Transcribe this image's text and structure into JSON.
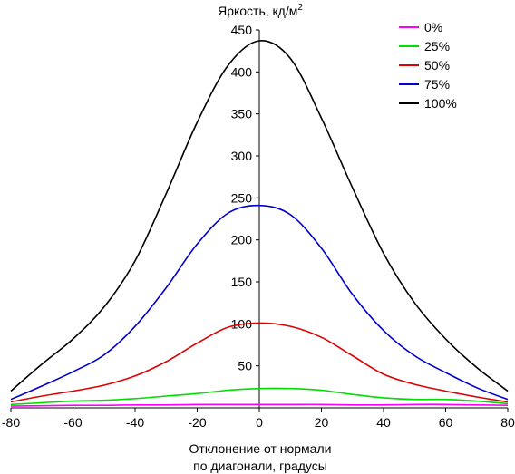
{
  "chart_data": {
    "type": "line",
    "title": "Яркость, кд/м",
    "title_sup": "2",
    "xlabel_line1": "Отклонение от нормали",
    "xlabel_line2": "по диагонали, градусы",
    "xlim": [
      -80,
      80
    ],
    "ylim": [
      0,
      450
    ],
    "xticks": [
      -80,
      -60,
      -40,
      -20,
      0,
      20,
      40,
      60,
      80
    ],
    "yticks": [
      50,
      100,
      150,
      200,
      250,
      300,
      350,
      400,
      450
    ],
    "grid": false,
    "legend_position": "top-right",
    "x": [
      -80,
      -70,
      -60,
      -50,
      -40,
      -30,
      -20,
      -10,
      0,
      10,
      20,
      30,
      40,
      50,
      60,
      70,
      80
    ],
    "series": [
      {
        "name": "0%",
        "color": "#ff00ff",
        "values": [
          2,
          2.5,
          3,
          3,
          3.5,
          3.5,
          4,
          4,
          4,
          4,
          4,
          3.5,
          3.5,
          4,
          4,
          3.5,
          3
        ]
      },
      {
        "name": "25%",
        "color": "#00dd00",
        "values": [
          4,
          6,
          8,
          9,
          11,
          14,
          17,
          21,
          23,
          23,
          21,
          16,
          12,
          10,
          10,
          8,
          5
        ]
      },
      {
        "name": "50%",
        "color": "#dd0000",
        "values": [
          7,
          14,
          20,
          27,
          38,
          55,
          77,
          96,
          101,
          97,
          84,
          62,
          40,
          28,
          20,
          13,
          7
        ]
      },
      {
        "name": "75%",
        "color": "#0000cc",
        "values": [
          10,
          26,
          43,
          63,
          97,
          143,
          195,
          232,
          241,
          230,
          190,
          135,
          92,
          62,
          42,
          24,
          10
        ]
      },
      {
        "name": "100%",
        "color": "#000000",
        "values": [
          20,
          52,
          82,
          120,
          175,
          255,
          340,
          408,
          437,
          416,
          345,
          262,
          184,
          125,
          82,
          48,
          20
        ]
      }
    ]
  }
}
